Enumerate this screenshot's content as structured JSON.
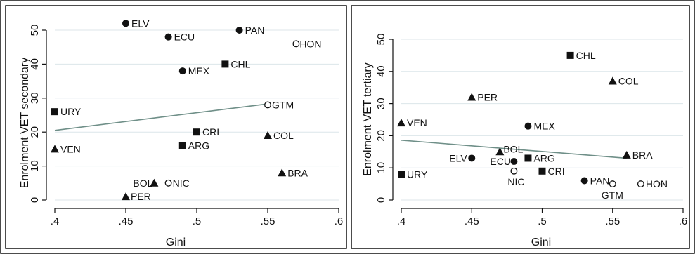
{
  "chart_data": [
    {
      "type": "scatter",
      "title": "",
      "xlabel": "Gini",
      "ylabel": "Enrolment VET secondary",
      "xlim": [
        0.4,
        0.6
      ],
      "ylim": [
        0,
        55
      ],
      "xticks": [
        0.4,
        0.45,
        0.5,
        0.55,
        0.6
      ],
      "xtick_labels": [
        ".4",
        ".45",
        ".5",
        ".55",
        ".6"
      ],
      "yticks": [
        0,
        10,
        20,
        30,
        40,
        50
      ],
      "ytick_labels": [
        "0",
        "10",
        "20",
        "30",
        "40",
        "50"
      ],
      "grid": true,
      "fit_line": {
        "x": [
          0.4,
          0.55
        ],
        "y": [
          20.5,
          28.3
        ]
      },
      "points": [
        {
          "label": "ELV",
          "x": 0.45,
          "y": 52,
          "marker": "circle"
        },
        {
          "label": "ECU",
          "x": 0.48,
          "y": 48,
          "marker": "circle"
        },
        {
          "label": "PAN",
          "x": 0.53,
          "y": 50,
          "marker": "circle"
        },
        {
          "label": "HON",
          "x": 0.57,
          "y": 46,
          "marker": "circle-open"
        },
        {
          "label": "MEX",
          "x": 0.49,
          "y": 38,
          "marker": "circle"
        },
        {
          "label": "CHL",
          "x": 0.52,
          "y": 40,
          "marker": "square"
        },
        {
          "label": "GTM",
          "x": 0.55,
          "y": 28,
          "marker": "circle-open"
        },
        {
          "label": "URY",
          "x": 0.4,
          "y": 26,
          "marker": "square"
        },
        {
          "label": "CRI",
          "x": 0.5,
          "y": 20,
          "marker": "square"
        },
        {
          "label": "COL",
          "x": 0.55,
          "y": 19,
          "marker": "triangle"
        },
        {
          "label": "ARG",
          "x": 0.49,
          "y": 16,
          "marker": "square"
        },
        {
          "label": "VEN",
          "x": 0.4,
          "y": 15,
          "marker": "triangle"
        },
        {
          "label": "BRA",
          "x": 0.56,
          "y": 8,
          "marker": "triangle"
        },
        {
          "label": "BOL",
          "x": 0.47,
          "y": 5,
          "marker": "triangle"
        },
        {
          "label": "NIC",
          "x": 0.48,
          "y": 5,
          "marker": "circle-open"
        },
        {
          "label": "PER",
          "x": 0.45,
          "y": 1,
          "marker": "triangle"
        }
      ]
    },
    {
      "type": "scatter",
      "title": "",
      "xlabel": "Gini",
      "ylabel": "Enrolment VET tertiary",
      "xlim": [
        0.4,
        0.6
      ],
      "ylim": [
        0,
        50
      ],
      "xticks": [
        0.4,
        0.45,
        0.5,
        0.55,
        0.6
      ],
      "xtick_labels": [
        ".4",
        ".45",
        ".5",
        ".55",
        ".6"
      ],
      "yticks": [
        0,
        10,
        20,
        30,
        40,
        50
      ],
      "ytick_labels": [
        "0",
        "10",
        "20",
        "30",
        "40",
        "50"
      ],
      "grid": true,
      "fit_line": {
        "x": [
          0.4,
          0.56
        ],
        "y": [
          18.6,
          13.0
        ]
      },
      "points": [
        {
          "label": "CHL",
          "x": 0.52,
          "y": 45,
          "marker": "square"
        },
        {
          "label": "COL",
          "x": 0.55,
          "y": 37,
          "marker": "triangle"
        },
        {
          "label": "PER",
          "x": 0.45,
          "y": 32,
          "marker": "triangle"
        },
        {
          "label": "VEN",
          "x": 0.4,
          "y": 24,
          "marker": "triangle"
        },
        {
          "label": "MEX",
          "x": 0.49,
          "y": 23,
          "marker": "circle"
        },
        {
          "label": "BOL",
          "x": 0.47,
          "y": 15,
          "marker": "triangle"
        },
        {
          "label": "BRA",
          "x": 0.56,
          "y": 14,
          "marker": "triangle"
        },
        {
          "label": "ELV",
          "x": 0.45,
          "y": 13,
          "marker": "circle"
        },
        {
          "label": "ARG",
          "x": 0.49,
          "y": 13,
          "marker": "square"
        },
        {
          "label": "ECU",
          "x": 0.48,
          "y": 12,
          "marker": "circle"
        },
        {
          "label": "NIC",
          "x": 0.48,
          "y": 9,
          "marker": "circle-open"
        },
        {
          "label": "CRI",
          "x": 0.5,
          "y": 9,
          "marker": "square"
        },
        {
          "label": "URY",
          "x": 0.4,
          "y": 8,
          "marker": "square"
        },
        {
          "label": "PAN",
          "x": 0.53,
          "y": 6,
          "marker": "circle"
        },
        {
          "label": "GTM",
          "x": 0.55,
          "y": 5,
          "marker": "circle-open"
        },
        {
          "label": "HON",
          "x": 0.57,
          "y": 5,
          "marker": "circle-open"
        }
      ]
    }
  ],
  "colors": {
    "fit_line": "#6f8f88",
    "grid": "#dce6ea",
    "marker": "#111111",
    "frame": "#111111"
  }
}
